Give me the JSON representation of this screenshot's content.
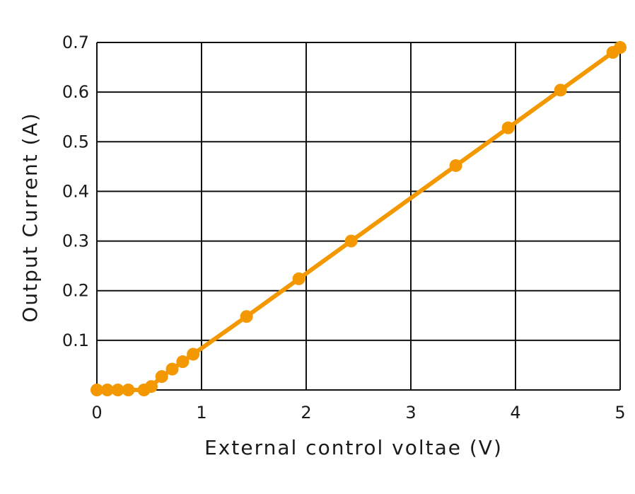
{
  "chart_data": {
    "type": "line",
    "xlabel": "External control voltae (V)",
    "ylabel": "Output Current (A)",
    "xlim": [
      0,
      5
    ],
    "ylim": [
      0,
      0.7
    ],
    "grid": true,
    "line_color": "#F39800",
    "marker_color": "#F39800",
    "xticks": [
      {
        "value": 0,
        "label": "0"
      },
      {
        "value": 1,
        "label": "1"
      },
      {
        "value": 2,
        "label": "2"
      },
      {
        "value": 3,
        "label": "3"
      },
      {
        "value": 4,
        "label": "4"
      },
      {
        "value": 5,
        "label": "5"
      }
    ],
    "yticks": [
      {
        "value": 0.1,
        "label": "0.1"
      },
      {
        "value": 0.2,
        "label": "0.2"
      },
      {
        "value": 0.3,
        "label": "0.3"
      },
      {
        "value": 0.4,
        "label": "0.4"
      },
      {
        "value": 0.5,
        "label": "0.5"
      },
      {
        "value": 0.6,
        "label": "0.6"
      },
      {
        "value": 0.7,
        "label": "0.7"
      }
    ],
    "grid_x": [
      1,
      2,
      3,
      4
    ],
    "grid_y": [
      0.1,
      0.2,
      0.3,
      0.4,
      0.5,
      0.6
    ],
    "series": [
      {
        "x": [
          0.0,
          0.1,
          0.2,
          0.3,
          0.45,
          0.52,
          0.62,
          0.72,
          0.82,
          0.92,
          1.43,
          1.93,
          2.43,
          3.43,
          3.93,
          4.43,
          4.93,
          5.0
        ],
        "y": [
          0.0,
          0.0,
          0.0,
          0.0,
          0.0,
          0.007,
          0.027,
          0.042,
          0.057,
          0.072,
          0.148,
          0.224,
          0.3,
          0.452,
          0.528,
          0.604,
          0.68,
          0.69
        ]
      }
    ]
  }
}
